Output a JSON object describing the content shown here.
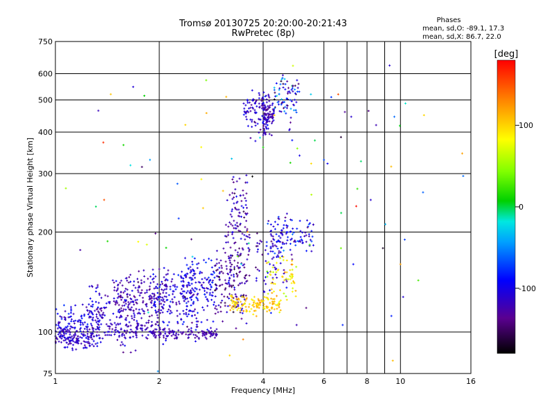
{
  "chart_data": {
    "type": "scatter",
    "title": "Tromsø 20130725 20:20:00-20:21:43",
    "subtitle": "RwPretec (8p)",
    "phase_info": {
      "heading": "Phases",
      "line_o": "mean, sd,O: -89.1, 17.3",
      "line_x": "mean, sd,X:  86.7, 22.0"
    },
    "xlabel": "Frequency [MHz]",
    "ylabel": "Stationary phase Virtual Height [km]",
    "xscale": "log",
    "yscale": "log",
    "xlim": [
      1,
      16
    ],
    "ylim": [
      75,
      750
    ],
    "x_ticks": [
      {
        "value": 1,
        "label": "1"
      },
      {
        "value": 2,
        "label": "2"
      },
      {
        "value": 4,
        "label": "4"
      },
      {
        "value": 6,
        "label": "6"
      },
      {
        "value": 8,
        "label": "8"
      },
      {
        "value": 10,
        "label": "10"
      },
      {
        "value": 16,
        "label": "16"
      }
    ],
    "x_gridlines": [
      2,
      4,
      6,
      7,
      8,
      9,
      10
    ],
    "y_ticks": [
      {
        "value": 75,
        "label": "75"
      },
      {
        "value": 100,
        "label": "100"
      },
      {
        "value": 200,
        "label": "200"
      },
      {
        "value": 300,
        "label": "300"
      },
      {
        "value": 400,
        "label": "400"
      },
      {
        "value": 500,
        "label": "500"
      },
      {
        "value": 600,
        "label": "600"
      },
      {
        "value": 750,
        "label": "750"
      }
    ],
    "y_gridlines": [
      100,
      200,
      300,
      400,
      500,
      600
    ],
    "grid": true,
    "colorbar": {
      "label": "[deg]",
      "range": [
        -180,
        180
      ],
      "ticks": [
        {
          "value": 100,
          "label": "100"
        },
        {
          "value": 0,
          "label": "0"
        },
        {
          "value": -100,
          "label": "-100"
        }
      ]
    },
    "clusters": [
      {
        "f": [
          1.0,
          1.35
        ],
        "h": [
          106,
          8
        ],
        "phase": [
          -100,
          12
        ],
        "n": 130
      },
      {
        "f": [
          1.0,
          1.3
        ],
        "h": [
          97,
          4
        ],
        "phase": [
          -115,
          10
        ],
        "n": 120
      },
      {
        "f": [
          1.25,
          1.75
        ],
        "h": [
          116,
          12
        ],
        "phase": [
          -112,
          14
        ],
        "n": 150
      },
      {
        "f": [
          1.5,
          2.1
        ],
        "h": [
          128,
          10
        ],
        "phase": [
          -122,
          12
        ],
        "n": 150
      },
      {
        "f": [
          1.9,
          2.6
        ],
        "h": [
          126,
          15
        ],
        "phase": [
          -110,
          14
        ],
        "n": 160
      },
      {
        "f": [
          2.3,
          3.0
        ],
        "h": [
          140,
          14
        ],
        "phase": [
          -98,
          15
        ],
        "n": 150
      },
      {
        "f": [
          1.3,
          2.0
        ],
        "h": [
          102,
          4
        ],
        "phase": [
          -118,
          8
        ],
        "n": 90
      },
      {
        "f": [
          1.9,
          2.95
        ],
        "h": [
          99,
          2
        ],
        "phase": [
          -122,
          6
        ],
        "n": 110
      },
      {
        "f": [
          2.9,
          3.6
        ],
        "h": [
          140,
          16
        ],
        "phase": [
          -130,
          18
        ],
        "n": 140
      },
      {
        "f": [
          3.1,
          3.7
        ],
        "h": [
          185,
          20
        ],
        "phase": [
          -125,
          14
        ],
        "n": 60
      },
      {
        "f": [
          3.2,
          3.6
        ],
        "h": [
          240,
          30
        ],
        "phase": [
          -120,
          14
        ],
        "n": 60
      },
      {
        "f": [
          3.2,
          4.5
        ],
        "h": [
          122,
          4
        ],
        "phase": [
          104,
          14
        ],
        "n": 130
      },
      {
        "f": [
          3.8,
          4.7
        ],
        "h": [
          175,
          25
        ],
        "phase": [
          -110,
          18
        ],
        "n": 80
      },
      {
        "f": [
          4.2,
          5.6
        ],
        "h": [
          195,
          12
        ],
        "phase": [
          -100,
          20
        ],
        "n": 90
      },
      {
        "f": [
          4.1,
          5.0
        ],
        "h": [
          145,
          12
        ],
        "phase": [
          90,
          20
        ],
        "n": 60
      },
      {
        "f": [
          3.5,
          4.2
        ],
        "h": [
          470,
          35
        ],
        "phase": [
          -112,
          14
        ],
        "n": 100
      },
      {
        "f": [
          4.0,
          4.3
        ],
        "h": [
          445,
          25
        ],
        "phase": [
          -120,
          12
        ],
        "n": 80
      },
      {
        "f": [
          4.3,
          5.1
        ],
        "h": [
          520,
          45
        ],
        "phase": [
          -100,
          40
        ],
        "n": 80
      },
      {
        "f": [
          1.0,
          12.0
        ],
        "h": [
          260,
          160
        ],
        "phase": [
          0,
          90
        ],
        "n": 80
      }
    ],
    "isolated_points": [
      {
        "f": 1.95,
        "h": 198,
        "phase": -140
      },
      {
        "f": 6.3,
        "h": 510,
        "phase": -75
      },
      {
        "f": 6.9,
        "h": 460,
        "phase": -130
      },
      {
        "f": 7.2,
        "h": 445,
        "phase": -110
      },
      {
        "f": 8.5,
        "h": 420,
        "phase": -120
      },
      {
        "f": 9.3,
        "h": 635,
        "phase": -110
      },
      {
        "f": 9.6,
        "h": 445,
        "phase": -60
      },
      {
        "f": 11.7,
        "h": 450,
        "phase": 100
      },
      {
        "f": 15.2,
        "h": 295,
        "phase": -60
      },
      {
        "f": 15.1,
        "h": 345,
        "phase": 120
      },
      {
        "f": 7.5,
        "h": 270,
        "phase": 20
      },
      {
        "f": 8.2,
        "h": 250,
        "phase": -110
      },
      {
        "f": 7.3,
        "h": 160,
        "phase": -90
      },
      {
        "f": 9.5,
        "h": 82,
        "phase": 110
      },
      {
        "f": 5.1,
        "h": 340,
        "phase": -100
      },
      {
        "f": 6.0,
        "h": 330,
        "phase": -70
      },
      {
        "f": 6.8,
        "h": 105,
        "phase": -80
      },
      {
        "f": 9.4,
        "h": 315,
        "phase": 110
      },
      {
        "f": 10.0,
        "h": 160,
        "phase": 120
      },
      {
        "f": 4.0,
        "h": 360,
        "phase": 10
      },
      {
        "f": 3.2,
        "h": 85,
        "phase": 100
      },
      {
        "f": 3.5,
        "h": 95,
        "phase": 130
      },
      {
        "f": 5.0,
        "h": 105,
        "phase": -120
      },
      {
        "f": 6.6,
        "h": 520,
        "phase": 150
      },
      {
        "f": 5.5,
        "h": 520,
        "phase": -30
      }
    ]
  }
}
